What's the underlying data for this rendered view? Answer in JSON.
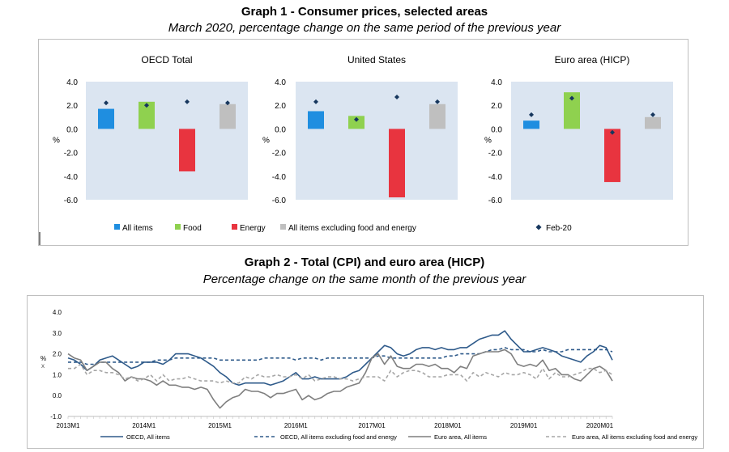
{
  "graph1": {
    "title": "Graph 1 - Consumer prices, selected areas",
    "subtitle": "March 2020, percentage change on the same period of the previous year",
    "unit": "%",
    "legend": {
      "all_items": "All items",
      "food": "Food",
      "energy": "Energy",
      "core": "All items excluding food and energy",
      "prev": "Feb-20"
    },
    "colors": {
      "all_items": "#1f8ee0",
      "food": "#8fd14f",
      "energy": "#e8343f",
      "core": "#bfbfbf",
      "marker": "#17375e",
      "plot_bg": "#dbe5f1"
    }
  },
  "graph2": {
    "title": "Graph 2 - Total (CPI) and euro area (HICP)",
    "subtitle": "Percentage change on the same month of the previous year",
    "unit": "%",
    "stray_char": "x",
    "legend": [
      {
        "name": "OECD, All items",
        "color": "#2e5a8a",
        "dash": false
      },
      {
        "name": "OECD, All items excluding food and energy",
        "color": "#2e5a8a",
        "dash": true
      },
      {
        "name": "Euro area, All items",
        "color": "#7f7f7f",
        "dash": false
      },
      {
        "name": "Euro area, All items excluding food and energy",
        "color": "#a6a6a6",
        "dash": true
      }
    ]
  },
  "chart_data": [
    {
      "type": "bar",
      "title": "OECD Total",
      "categories": [
        "All items",
        "Food",
        "Energy",
        "All items excluding food and energy"
      ],
      "series": [
        {
          "name": "Mar-20",
          "values": [
            1.7,
            2.3,
            -3.6,
            2.1
          ]
        },
        {
          "name": "Feb-20",
          "values": [
            2.2,
            2.0,
            2.3,
            2.2
          ]
        }
      ],
      "ylim": [
        -6,
        4
      ],
      "yticks": [
        "4.0",
        "2.0",
        "0.0",
        "-2.0",
        "-4.0",
        "-6.0"
      ],
      "ylabel": "%",
      "grid": false
    },
    {
      "type": "bar",
      "title": "United States",
      "categories": [
        "All items",
        "Food",
        "Energy",
        "All items excluding food and energy"
      ],
      "series": [
        {
          "name": "Mar-20",
          "values": [
            1.5,
            1.1,
            -5.8,
            2.1
          ]
        },
        {
          "name": "Feb-20",
          "values": [
            2.3,
            0.8,
            2.7,
            2.3
          ]
        }
      ],
      "ylim": [
        -6,
        4
      ],
      "yticks": [
        "4.0",
        "2.0",
        "0.0",
        "-2.0",
        "-4.0",
        "-6.0"
      ],
      "ylabel": "%",
      "grid": false
    },
    {
      "type": "bar",
      "title": "Euro area (HICP)",
      "categories": [
        "All items",
        "Food",
        "Energy",
        "All items excluding food and energy"
      ],
      "series": [
        {
          "name": "Mar-20",
          "values": [
            0.7,
            3.1,
            -4.5,
            1.0
          ]
        },
        {
          "name": "Feb-20",
          "values": [
            1.2,
            2.6,
            -0.3,
            1.2
          ]
        }
      ],
      "ylim": [
        -6,
        4
      ],
      "yticks": [
        "4.0",
        "2.0",
        "0.0",
        "-2.0",
        "-4.0",
        "-6.0"
      ],
      "ylabel": "%",
      "grid": false
    },
    {
      "type": "line",
      "x": [
        "2013-01",
        "2013-02",
        "2013-03",
        "2013-04",
        "2013-05",
        "2013-06",
        "2013-07",
        "2013-08",
        "2013-09",
        "2013-10",
        "2013-11",
        "2013-12",
        "2014-01",
        "2014-02",
        "2014-03",
        "2014-04",
        "2014-05",
        "2014-06",
        "2014-07",
        "2014-08",
        "2014-09",
        "2014-10",
        "2014-11",
        "2014-12",
        "2015-01",
        "2015-02",
        "2015-03",
        "2015-04",
        "2015-05",
        "2015-06",
        "2015-07",
        "2015-08",
        "2015-09",
        "2015-10",
        "2015-11",
        "2015-12",
        "2016-01",
        "2016-02",
        "2016-03",
        "2016-04",
        "2016-05",
        "2016-06",
        "2016-07",
        "2016-08",
        "2016-09",
        "2016-10",
        "2016-11",
        "2016-12",
        "2017-01",
        "2017-02",
        "2017-03",
        "2017-04",
        "2017-05",
        "2017-06",
        "2017-07",
        "2017-08",
        "2017-09",
        "2017-10",
        "2017-11",
        "2017-12",
        "2018-01",
        "2018-02",
        "2018-03",
        "2018-04",
        "2018-05",
        "2018-06",
        "2018-07",
        "2018-08",
        "2018-09",
        "2018-10",
        "2018-11",
        "2018-12",
        "2019-01",
        "2019-02",
        "2019-03",
        "2019-04",
        "2019-05",
        "2019-06",
        "2019-07",
        "2019-08",
        "2019-09",
        "2019-10",
        "2019-11",
        "2019-12",
        "2020-01",
        "2020-02",
        "2020-03"
      ],
      "xticks": [
        "2013M1",
        "2014M1",
        "2015M1",
        "2016M1",
        "2017M01",
        "2018M01",
        "2019M01",
        "2020M01"
      ],
      "yticks": [
        "4.0",
        "3.0",
        "2.0",
        "1.0",
        "0.0",
        "-1.0"
      ],
      "ylim": [
        -1,
        4
      ],
      "ylabel": "%",
      "grid": false,
      "series": [
        {
          "name": "OECD, All items",
          "values": [
            1.8,
            1.7,
            1.5,
            1.2,
            1.4,
            1.7,
            1.8,
            1.9,
            1.7,
            1.5,
            1.3,
            1.4,
            1.6,
            1.6,
            1.6,
            1.5,
            1.7,
            2.0,
            2.0,
            2.0,
            1.9,
            1.8,
            1.6,
            1.4,
            1.1,
            0.9,
            0.6,
            0.5,
            0.6,
            0.6,
            0.6,
            0.6,
            0.5,
            0.6,
            0.7,
            0.9,
            1.1,
            0.8,
            0.8,
            0.9,
            0.8,
            0.8,
            0.8,
            0.8,
            0.9,
            1.1,
            1.2,
            1.5,
            1.8,
            2.1,
            2.4,
            2.3,
            2.0,
            1.9,
            2.0,
            2.2,
            2.3,
            2.3,
            2.2,
            2.3,
            2.2,
            2.2,
            2.3,
            2.3,
            2.5,
            2.7,
            2.8,
            2.9,
            2.9,
            3.1,
            2.7,
            2.4,
            2.1,
            2.1,
            2.2,
            2.3,
            2.2,
            2.1,
            1.9,
            1.8,
            1.7,
            1.6,
            1.9,
            2.1,
            2.4,
            2.3,
            1.7
          ]
        },
        {
          "name": "OECD, All items excluding food and energy",
          "values": [
            1.6,
            1.6,
            1.6,
            1.5,
            1.5,
            1.6,
            1.6,
            1.6,
            1.6,
            1.6,
            1.6,
            1.6,
            1.6,
            1.6,
            1.7,
            1.7,
            1.7,
            1.8,
            1.8,
            1.8,
            1.8,
            1.8,
            1.8,
            1.8,
            1.7,
            1.7,
            1.7,
            1.7,
            1.7,
            1.7,
            1.7,
            1.8,
            1.8,
            1.8,
            1.8,
            1.8,
            1.7,
            1.8,
            1.8,
            1.8,
            1.7,
            1.8,
            1.8,
            1.8,
            1.8,
            1.8,
            1.8,
            1.8,
            1.8,
            1.9,
            1.9,
            1.8,
            1.8,
            1.8,
            1.8,
            1.8,
            1.8,
            1.8,
            1.8,
            1.8,
            1.9,
            1.9,
            2.0,
            2.0,
            2.0,
            2.0,
            2.1,
            2.2,
            2.2,
            2.3,
            2.2,
            2.2,
            2.2,
            2.1,
            2.1,
            2.2,
            2.1,
            2.1,
            2.1,
            2.2,
            2.2,
            2.2,
            2.2,
            2.2,
            2.2,
            2.2,
            2.1
          ]
        },
        {
          "name": "Euro area, All items",
          "values": [
            2.0,
            1.8,
            1.7,
            1.2,
            1.4,
            1.6,
            1.6,
            1.3,
            1.1,
            0.7,
            0.9,
            0.8,
            0.8,
            0.7,
            0.5,
            0.7,
            0.5,
            0.5,
            0.4,
            0.4,
            0.3,
            0.4,
            0.3,
            -0.2,
            -0.6,
            -0.3,
            -0.1,
            0.0,
            0.3,
            0.2,
            0.2,
            0.1,
            -0.1,
            0.1,
            0.1,
            0.2,
            0.3,
            -0.2,
            0.0,
            -0.2,
            -0.1,
            0.1,
            0.2,
            0.2,
            0.4,
            0.5,
            0.6,
            1.1,
            1.8,
            2.0,
            1.5,
            1.9,
            1.4,
            1.3,
            1.3,
            1.5,
            1.5,
            1.4,
            1.5,
            1.3,
            1.3,
            1.1,
            1.4,
            1.3,
            1.9,
            2.0,
            2.1,
            2.1,
            2.1,
            2.2,
            2.0,
            1.5,
            1.4,
            1.5,
            1.4,
            1.7,
            1.2,
            1.3,
            1.0,
            1.0,
            0.8,
            0.7,
            1.0,
            1.3,
            1.4,
            1.2,
            0.7
          ]
        },
        {
          "name": "Euro area, All items excluding food and energy",
          "values": [
            1.3,
            1.3,
            1.5,
            1.0,
            1.2,
            1.2,
            1.1,
            1.1,
            1.0,
            0.8,
            0.9,
            0.7,
            0.8,
            1.0,
            0.7,
            1.0,
            0.7,
            0.8,
            0.8,
            0.9,
            0.8,
            0.7,
            0.7,
            0.7,
            0.6,
            0.7,
            0.6,
            0.6,
            0.9,
            0.8,
            1.0,
            0.9,
            0.9,
            1.0,
            0.9,
            0.9,
            1.0,
            0.8,
            1.0,
            0.7,
            0.8,
            0.9,
            0.9,
            0.8,
            0.8,
            0.7,
            0.8,
            0.9,
            0.9,
            0.9,
            0.7,
            1.2,
            0.9,
            1.1,
            1.2,
            1.2,
            1.1,
            0.9,
            0.9,
            0.9,
            1.0,
            1.0,
            1.0,
            0.7,
            1.1,
            0.9,
            1.1,
            1.0,
            0.9,
            1.1,
            1.0,
            1.0,
            1.1,
            1.0,
            0.8,
            1.3,
            0.8,
            1.1,
            0.9,
            0.9,
            1.0,
            1.1,
            1.3,
            1.3,
            1.1,
            1.2,
            1.0
          ]
        }
      ]
    }
  ]
}
